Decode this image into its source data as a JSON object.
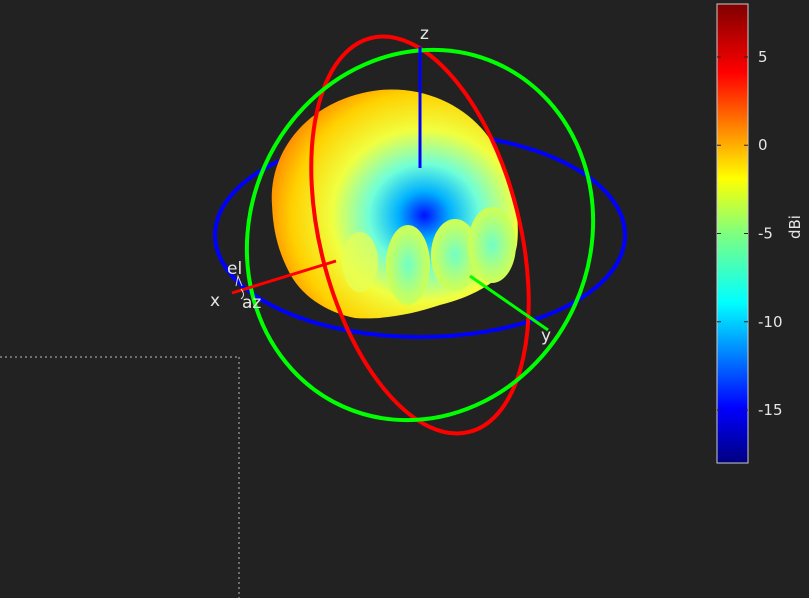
{
  "chart_data": {
    "type": "3d-radiation-pattern",
    "axes": {
      "x": "x",
      "y": "y",
      "z": "z"
    },
    "angle_labels": {
      "elevation": "el",
      "azimuth": "az"
    },
    "colorbar": {
      "unit": "dBi",
      "range": [
        -18,
        8
      ],
      "ticks": [
        5,
        0,
        -5,
        -10,
        -15
      ],
      "colormap": "jet"
    },
    "great_circles": [
      {
        "plane": "xy",
        "color": "#0000ff"
      },
      {
        "plane": "xz",
        "color": "#ff0000"
      },
      {
        "plane": "yz",
        "color": "#00ff00"
      }
    ]
  }
}
